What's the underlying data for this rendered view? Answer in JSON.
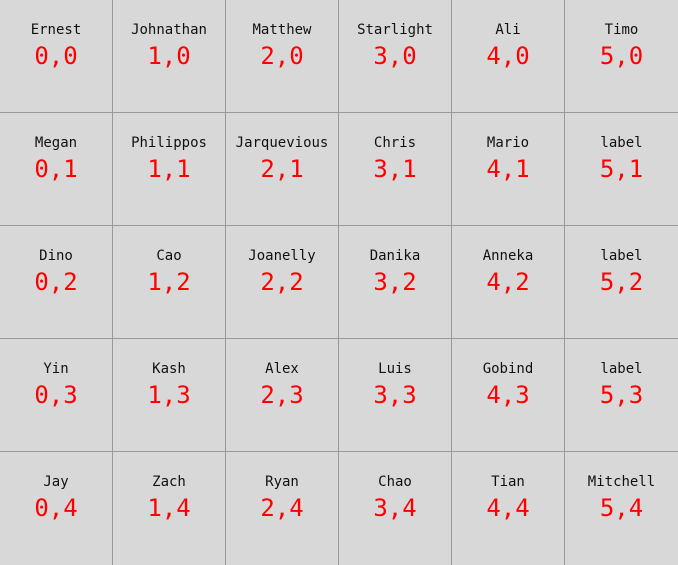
{
  "grid": {
    "columns": 6,
    "rows": 5,
    "colors": {
      "background": "#d8d8d8",
      "grid_line": "#999999",
      "name_text": "#111111",
      "coord_text": "#ff0000"
    },
    "cells": [
      {
        "name": "Ernest",
        "coord": "0,0"
      },
      {
        "name": "Johnathan",
        "coord": "1,0"
      },
      {
        "name": "Matthew",
        "coord": "2,0"
      },
      {
        "name": "Starlight",
        "coord": "3,0"
      },
      {
        "name": "Ali",
        "coord": "4,0"
      },
      {
        "name": "Timo",
        "coord": "5,0"
      },
      {
        "name": "Megan",
        "coord": "0,1"
      },
      {
        "name": "Philippos",
        "coord": "1,1"
      },
      {
        "name": "Jarquevious",
        "coord": "2,1"
      },
      {
        "name": "Chris",
        "coord": "3,1"
      },
      {
        "name": "Mario",
        "coord": "4,1"
      },
      {
        "name": "label",
        "coord": "5,1"
      },
      {
        "name": "Dino",
        "coord": "0,2"
      },
      {
        "name": "Cao",
        "coord": "1,2"
      },
      {
        "name": "Joanelly",
        "coord": "2,2"
      },
      {
        "name": "Danika",
        "coord": "3,2"
      },
      {
        "name": "Anneka",
        "coord": "4,2"
      },
      {
        "name": "label",
        "coord": "5,2"
      },
      {
        "name": "Yin",
        "coord": "0,3"
      },
      {
        "name": "Kash",
        "coord": "1,3"
      },
      {
        "name": "Alex",
        "coord": "2,3"
      },
      {
        "name": "Luis",
        "coord": "3,3"
      },
      {
        "name": "Gobind",
        "coord": "4,3"
      },
      {
        "name": "label",
        "coord": "5,3"
      },
      {
        "name": "Jay",
        "coord": "0,4"
      },
      {
        "name": "Zach",
        "coord": "1,4"
      },
      {
        "name": "Ryan",
        "coord": "2,4"
      },
      {
        "name": "Chao",
        "coord": "3,4"
      },
      {
        "name": "Tian",
        "coord": "4,4"
      },
      {
        "name": "Mitchell",
        "coord": "5,4"
      }
    ]
  }
}
